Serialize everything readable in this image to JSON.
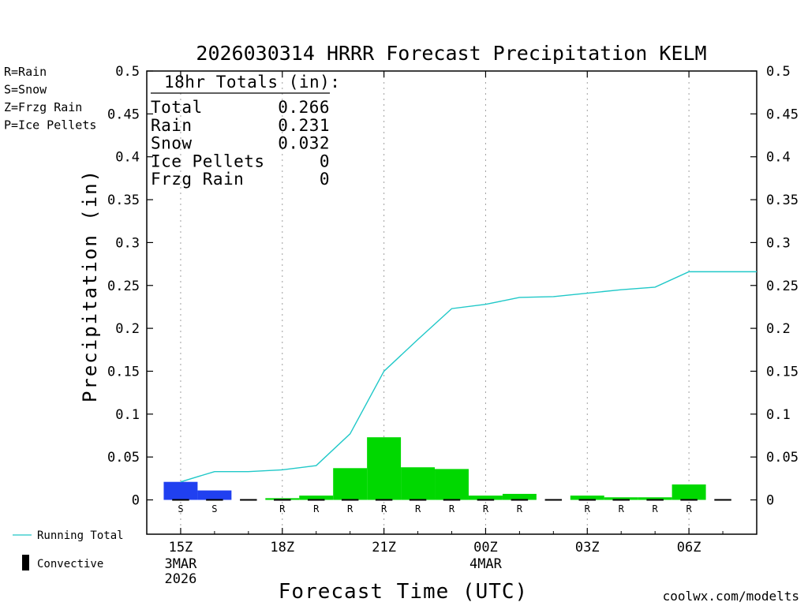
{
  "title": "2026030314 HRRR Forecast Precipitation KELM",
  "colors": {
    "rain": "#00d800",
    "snow": "#2040f0",
    "frzg_rain": "#f08820",
    "ice_pellets": "#f020a0",
    "running_total": "#20c8c8",
    "convective": "#000000"
  },
  "ptype_legend": [
    {
      "label": "R=Rain",
      "color": "#00d800"
    },
    {
      "label": "S=Snow",
      "color": "#2040f0"
    },
    {
      "label": "Z=Frzg Rain",
      "color": "#f08820"
    },
    {
      "label": "P=Ice Pellets",
      "color": "#f020a0"
    }
  ],
  "totals": {
    "heading": "18hr Totals (in):",
    "rows": [
      {
        "label": "Total",
        "value": "0.266"
      },
      {
        "label": "Rain",
        "value": "0.231"
      },
      {
        "label": "Snow",
        "value": "0.032"
      },
      {
        "label": "Ice Pellets",
        "value": "0"
      },
      {
        "label": "Frzg Rain",
        "value": "0"
      }
    ]
  },
  "legend": {
    "running_total": "Running Total",
    "convective": "Convective"
  },
  "watermark": "coolwx.com/modelts",
  "chart_data": {
    "type": "bar",
    "title": "2026030314 HRRR Forecast Precipitation KELM",
    "xlabel": "Forecast Time (UTC)",
    "ylabel": "Precipitation (in)",
    "ylim": [
      -0.04,
      0.5
    ],
    "y_ticks": [
      "0",
      "0.05",
      "0.1",
      "0.15",
      "0.2",
      "0.25",
      "0.3",
      "0.35",
      "0.4",
      "0.45",
      "0.5"
    ],
    "x_ticks": [
      {
        "label": "15Z",
        "sub": [
          "3MAR",
          "2026"
        ]
      },
      {
        "label": "18Z",
        "sub": []
      },
      {
        "label": "21Z",
        "sub": []
      },
      {
        "label": "00Z",
        "sub": [
          "4MAR"
        ]
      },
      {
        "label": "03Z",
        "sub": []
      },
      {
        "label": "06Z",
        "sub": []
      }
    ],
    "x_tick_hours": [
      15,
      18,
      21,
      24,
      27,
      30
    ],
    "xlim_hours": [
      14,
      32
    ],
    "grid": "vertical dotted at major ticks",
    "bars": [
      {
        "hour": 15,
        "value": 0.021,
        "ptype": "S"
      },
      {
        "hour": 16,
        "value": 0.011,
        "ptype": "S"
      },
      {
        "hour": 17,
        "value": 0.0,
        "ptype": ""
      },
      {
        "hour": 18,
        "value": 0.002,
        "ptype": "R"
      },
      {
        "hour": 19,
        "value": 0.005,
        "ptype": "R"
      },
      {
        "hour": 20,
        "value": 0.037,
        "ptype": "R"
      },
      {
        "hour": 21,
        "value": 0.073,
        "ptype": "R"
      },
      {
        "hour": 22,
        "value": 0.038,
        "ptype": "R"
      },
      {
        "hour": 23,
        "value": 0.036,
        "ptype": "R"
      },
      {
        "hour": 24,
        "value": 0.005,
        "ptype": "R"
      },
      {
        "hour": 25,
        "value": 0.007,
        "ptype": "R"
      },
      {
        "hour": 26,
        "value": 0.0,
        "ptype": ""
      },
      {
        "hour": 27,
        "value": 0.005,
        "ptype": "R"
      },
      {
        "hour": 28,
        "value": 0.003,
        "ptype": "R"
      },
      {
        "hour": 29,
        "value": 0.003,
        "ptype": "R"
      },
      {
        "hour": 30,
        "value": 0.018,
        "ptype": "R"
      },
      {
        "hour": 31,
        "value": 0.0,
        "ptype": ""
      }
    ],
    "running_total": {
      "name": "Running Total",
      "points": [
        [
          15,
          0.021
        ],
        [
          16,
          0.033
        ],
        [
          17,
          0.033
        ],
        [
          18,
          0.035
        ],
        [
          19,
          0.04
        ],
        [
          20,
          0.077
        ],
        [
          21,
          0.15
        ],
        [
          22,
          0.187
        ],
        [
          23,
          0.223
        ],
        [
          24,
          0.228
        ],
        [
          25,
          0.236
        ],
        [
          26,
          0.237
        ],
        [
          27,
          0.241
        ],
        [
          28,
          0.245
        ],
        [
          29,
          0.248
        ],
        [
          30,
          0.266
        ],
        [
          31,
          0.266
        ],
        [
          32,
          0.266
        ]
      ]
    }
  }
}
